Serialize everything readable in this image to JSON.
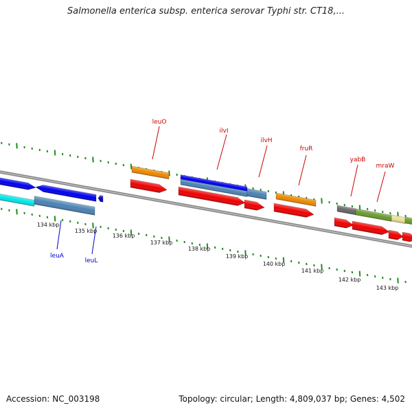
{
  "header": {
    "title": "Salmonella enterica subsp. enterica serovar Typhi str. CT18,..."
  },
  "footer": {
    "accession": "Accession: NC_003198",
    "summary": "Topology: circular; Length: 4,809,037 bp; Genes: 4,502"
  },
  "ruler": {
    "unit": "kbp",
    "labels": [
      "134 kbp",
      "135 kbp",
      "136 kbp",
      "137 kbp",
      "138 kbp",
      "139 kbp",
      "140 kbp",
      "141 kbp",
      "142 kbp",
      "143 kbp"
    ]
  },
  "gene_labels": {
    "forward": [
      "leuO",
      "ilvI",
      "ilvH",
      "fruR",
      "yabB",
      "mraW"
    ],
    "reverse": [
      "leuA",
      "leuL"
    ]
  },
  "colors": {
    "backbone": "#8a8a8a",
    "tick": "#1e8c1e",
    "forward_label": "#cc0000",
    "reverse_label": "#0000cc",
    "cds": "#ee0000",
    "gene_blue": "#0000ee",
    "gene_steel": "#4a82b4",
    "gene_orange": "#ee8800",
    "gene_cyan": "#00e6e6",
    "gene_olive": "#6b9a2e",
    "gene_gray": "#666666",
    "gene_khaki": "#e8e090"
  }
}
